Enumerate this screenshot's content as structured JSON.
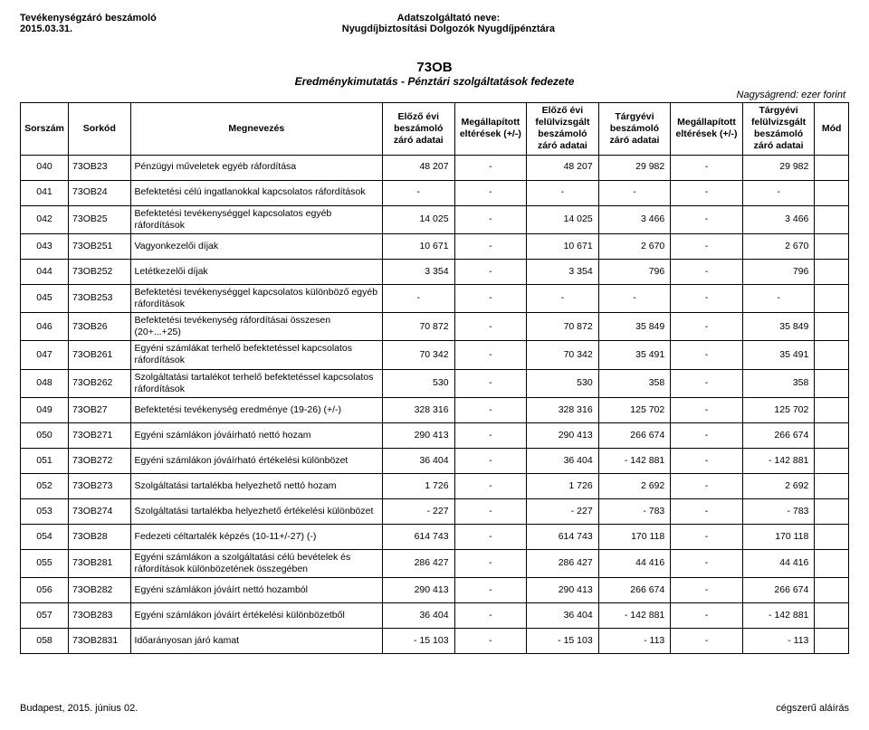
{
  "header": {
    "left1": "Tevékenységzáró beszámoló",
    "left2": "2015.03.31.",
    "center1": "Adatszolgáltató neve:",
    "center2": "Nyugdíjbiztosítási Dolgozók Nyugdíjpénztára"
  },
  "title": {
    "code": "73OB",
    "subtitle": "Eredménykimutatás - Pénztári szolgáltatások fedezete"
  },
  "scale_note": "Nagyságrend: ezer forint",
  "columns": [
    "Sorszám",
    "Sorkód",
    "Megnevezés",
    "Előző évi beszámoló záró adatai",
    "Megállapított eltérések (+/-)",
    "Előző évi felülvizsgált beszámoló záró adatai",
    "Tárgyévi beszámoló záró adatai",
    "Megállapított eltérések (+/-)",
    "Tárgyévi felülvizsgált beszámoló záró adatai",
    "Mód"
  ],
  "rows": [
    {
      "s": "040",
      "k": "73OB23",
      "m": "Pénzügyi műveletek egyéb ráfordítása",
      "v": [
        "48 207",
        "-",
        "48 207",
        "29 982",
        "-",
        "29 982",
        ""
      ]
    },
    {
      "s": "041",
      "k": "73OB24",
      "m": "Befektetési célú ingatlanokkal kapcsolatos ráfordítások",
      "v": [
        "-",
        "-",
        "-",
        "-",
        "-",
        "-",
        ""
      ]
    },
    {
      "s": "042",
      "k": "73OB25",
      "m": "Befektetési tevékenységgel kapcsolatos egyéb ráfordítások",
      "v": [
        "14 025",
        "-",
        "14 025",
        "3 466",
        "-",
        "3 466",
        ""
      ]
    },
    {
      "s": "043",
      "k": "73OB251",
      "m": "Vagyonkezelői díjak",
      "v": [
        "10 671",
        "-",
        "10 671",
        "2 670",
        "-",
        "2 670",
        ""
      ]
    },
    {
      "s": "044",
      "k": "73OB252",
      "m": "Letétkezelői díjak",
      "v": [
        "3 354",
        "-",
        "3 354",
        "796",
        "-",
        "796",
        ""
      ]
    },
    {
      "s": "045",
      "k": "73OB253",
      "m": "Befektetési tevékenységgel kapcsolatos különböző egyéb ráfordítások",
      "v": [
        "-",
        "-",
        "-",
        "-",
        "-",
        "-",
        ""
      ]
    },
    {
      "s": "046",
      "k": "73OB26",
      "m": "Befektetési tevékenység ráfordításai összesen (20+...+25)",
      "v": [
        "70 872",
        "-",
        "70 872",
        "35 849",
        "-",
        "35 849",
        ""
      ]
    },
    {
      "s": "047",
      "k": "73OB261",
      "m": "Egyéni számlákat terhelő befektetéssel kapcsolatos ráfordítások",
      "v": [
        "70 342",
        "-",
        "70 342",
        "35 491",
        "-",
        "35 491",
        ""
      ]
    },
    {
      "s": "048",
      "k": "73OB262",
      "m": "Szolgáltatási tartalékot terhelő befektetéssel kapcsolatos ráfordítások",
      "v": [
        "530",
        "-",
        "530",
        "358",
        "-",
        "358",
        ""
      ]
    },
    {
      "s": "049",
      "k": "73OB27",
      "m": "Befektetési tevékenység eredménye (19-26) (+/-)",
      "v": [
        "328 316",
        "-",
        "328 316",
        "125 702",
        "-",
        "125 702",
        ""
      ]
    },
    {
      "s": "050",
      "k": "73OB271",
      "m": "Egyéni számlákon jóváírható nettó hozam",
      "v": [
        "290 413",
        "-",
        "290 413",
        "266 674",
        "-",
        "266 674",
        ""
      ]
    },
    {
      "s": "051",
      "k": "73OB272",
      "m": "Egyéni számlákon jóváírható értékelési különbözet",
      "v": [
        "36 404",
        "-",
        "36 404",
        "- 142 881",
        "-",
        "- 142 881",
        ""
      ]
    },
    {
      "s": "052",
      "k": "73OB273",
      "m": "Szolgáltatási tartalékba helyezhető nettó hozam",
      "v": [
        "1 726",
        "-",
        "1 726",
        "2 692",
        "-",
        "2 692",
        ""
      ]
    },
    {
      "s": "053",
      "k": "73OB274",
      "m": "Szolgáltatási tartalékba helyezhető értékelési különbözet",
      "v": [
        "- 227",
        "-",
        "- 227",
        "- 783",
        "-",
        "- 783",
        ""
      ]
    },
    {
      "s": "054",
      "k": "73OB28",
      "m": "Fedezeti céltartalék képzés (10-11+/-27) (-)",
      "v": [
        "614 743",
        "-",
        "614 743",
        "170 118",
        "-",
        "170 118",
        ""
      ]
    },
    {
      "s": "055",
      "k": "73OB281",
      "m": "Egyéni számlákon a szolgáltatási célú bevételek és ráfordítások különbözetének összegében",
      "v": [
        "286 427",
        "-",
        "286 427",
        "44 416",
        "-",
        "44 416",
        ""
      ]
    },
    {
      "s": "056",
      "k": "73OB282",
      "m": "Egyéni számlákon jóváírt nettó hozamból",
      "v": [
        "290 413",
        "-",
        "290 413",
        "266 674",
        "-",
        "266 674",
        ""
      ]
    },
    {
      "s": "057",
      "k": "73OB283",
      "m": "Egyéni számlákon jóváírt értékelési különbözetből",
      "v": [
        "36 404",
        "-",
        "36 404",
        "- 142 881",
        "-",
        "- 142 881",
        ""
      ]
    },
    {
      "s": "058",
      "k": "73OB2831",
      "m": "Időarányosan járó kamat",
      "v": [
        "- 15 103",
        "-",
        "- 15 103",
        "- 113",
        "-",
        "- 113",
        ""
      ]
    }
  ],
  "footer": {
    "left": "Budapest, 2015. június 02.",
    "right": "cégszerű aláírás"
  }
}
